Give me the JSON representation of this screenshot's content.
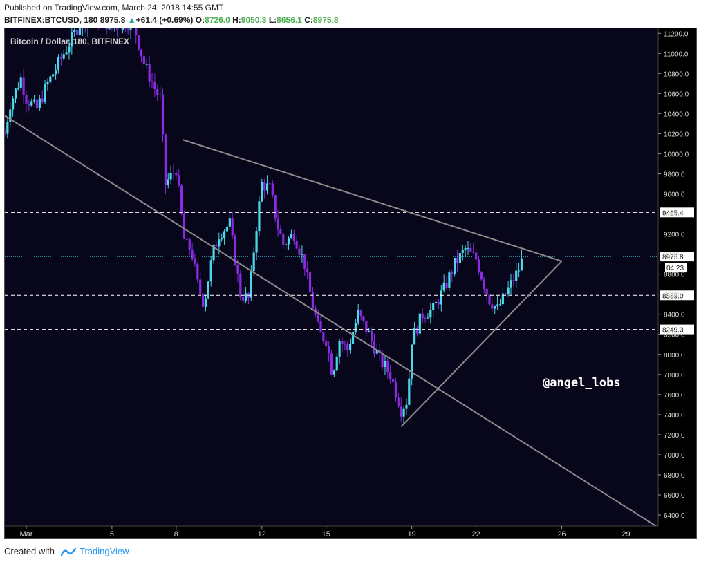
{
  "header": {
    "published": "Published on TradingView.com, March 24, 2018 14:55 GMT",
    "symbol": "BITFINEX:BTCUSD, 180",
    "last": "8975.8",
    "change": "+61.4 (+0.69%)",
    "o_label": "O:",
    "o_value": "8726.0",
    "h_label": "H:",
    "h_value": "9050.3",
    "l_label": "L:",
    "l_value": "8656.1",
    "c_label": "C:",
    "c_value": "8975.8"
  },
  "footer": {
    "created_with": "Created with",
    "brand": "TradingView"
  },
  "colors": {
    "background": "#08061a",
    "up_candle": "#4dd8e8",
    "down_candle": "#8a2be2",
    "trendline": "#8c8c8c",
    "level_line": "#ffffff",
    "price_line": "#4dd8e8"
  },
  "chart_data": {
    "type": "candlestick",
    "title": "Bitcoin / Dollar, 180, BITFINEX",
    "watermark": "@angel_lobs",
    "ylim": [
      6290,
      11250
    ],
    "y_ticks": [
      6400,
      6600,
      6800,
      7000,
      7200,
      7400,
      7600,
      7800,
      8000,
      8200,
      8400,
      8600,
      8800,
      9000,
      9200,
      9400,
      9600,
      9800,
      10000,
      10200,
      10400,
      10600,
      10800,
      11000,
      11200
    ],
    "y_tick_labels": [
      "6400.0",
      "6600.0",
      "6800.0",
      "7000.0",
      "7200.0",
      "7400.0",
      "7600.0",
      "7800.0",
      "8000.0",
      "8200.0",
      "8400.0",
      "8600.0",
      "8800.0",
      "9000.0",
      "9200.0",
      "9400.0",
      "9600.0",
      "9800.0",
      "10000.0",
      "10200.0",
      "10400.0",
      "10600.0",
      "10800.0",
      "11000.0",
      "11200.0"
    ],
    "x_ticks": [
      {
        "day": 1,
        "label": "Mar"
      },
      {
        "day": 5,
        "label": "5"
      },
      {
        "day": 8,
        "label": "8"
      },
      {
        "day": 12,
        "label": "12"
      },
      {
        "day": 15,
        "label": "15"
      },
      {
        "day": 19,
        "label": "19"
      },
      {
        "day": 22,
        "label": "22"
      },
      {
        "day": 26,
        "label": "26"
      },
      {
        "day": 29,
        "label": "29"
      }
    ],
    "xlim": [
      0.0,
      30.5
    ],
    "candle_interval_days": 0.125,
    "anchors": [
      [
        0.0,
        10200
      ],
      [
        0.25,
        10500
      ],
      [
        0.75,
        10750
      ],
      [
        1.0,
        10550
      ],
      [
        1.5,
        10450
      ],
      [
        2.0,
        10700
      ],
      [
        2.5,
        10900
      ],
      [
        3.0,
        11100
      ],
      [
        3.5,
        11300
      ],
      [
        4.0,
        11350
      ],
      [
        4.5,
        11350
      ],
      [
        5.0,
        11250
      ],
      [
        5.5,
        11300
      ],
      [
        6.0,
        11300
      ],
      [
        6.5,
        10900
      ],
      [
        7.0,
        10650
      ],
      [
        7.25,
        10550
      ],
      [
        7.5,
        9700
      ],
      [
        8.0,
        9850
      ],
      [
        8.4,
        9100
      ],
      [
        8.7,
        9050
      ],
      [
        9.0,
        8700
      ],
      [
        9.3,
        8500
      ],
      [
        9.7,
        9000
      ],
      [
        10.0,
        9200
      ],
      [
        10.5,
        9300
      ],
      [
        11.0,
        8600
      ],
      [
        11.4,
        8550
      ],
      [
        11.7,
        9200
      ],
      [
        12.0,
        9700
      ],
      [
        12.4,
        9650
      ],
      [
        12.7,
        9300
      ],
      [
        13.0,
        9100
      ],
      [
        13.5,
        9200
      ],
      [
        14.0,
        8900
      ],
      [
        14.3,
        8550
      ],
      [
        14.7,
        8200
      ],
      [
        15.0,
        8150
      ],
      [
        15.3,
        7800
      ],
      [
        15.6,
        8150
      ],
      [
        16.0,
        8050
      ],
      [
        16.5,
        8400
      ],
      [
        17.0,
        8200
      ],
      [
        17.5,
        7950
      ],
      [
        18.0,
        7800
      ],
      [
        18.5,
        7450
      ],
      [
        18.8,
        7550
      ],
      [
        19.0,
        8150
      ],
      [
        19.5,
        8400
      ],
      [
        20.0,
        8450
      ],
      [
        20.5,
        8650
      ],
      [
        21.0,
        8900
      ],
      [
        21.5,
        9050
      ],
      [
        22.0,
        8950
      ],
      [
        22.3,
        8750
      ],
      [
        22.6,
        8550
      ],
      [
        23.0,
        8450
      ],
      [
        23.5,
        8650
      ],
      [
        24.0,
        8850
      ],
      [
        24.2,
        8976
      ]
    ],
    "horizontal_levels": [
      {
        "value": 9415.4,
        "label": "9415.4",
        "style": "dashed"
      },
      {
        "value": 8589.0,
        "label": "8589.0",
        "style": "dashed"
      },
      {
        "value": 8249.3,
        "label": "8249.3",
        "style": "dashed"
      }
    ],
    "last_price": {
      "value": 8975.8,
      "label": "8975.8",
      "countdown": "04:23"
    },
    "trendlines": [
      {
        "from": [
          0.0,
          10380
        ],
        "to": [
          30.4,
          6290
        ]
      },
      {
        "from": [
          8.3,
          10140
        ],
        "to": [
          26.0,
          8930
        ]
      },
      {
        "from": [
          18.5,
          7280
        ],
        "to": [
          26.0,
          8930
        ]
      }
    ]
  }
}
